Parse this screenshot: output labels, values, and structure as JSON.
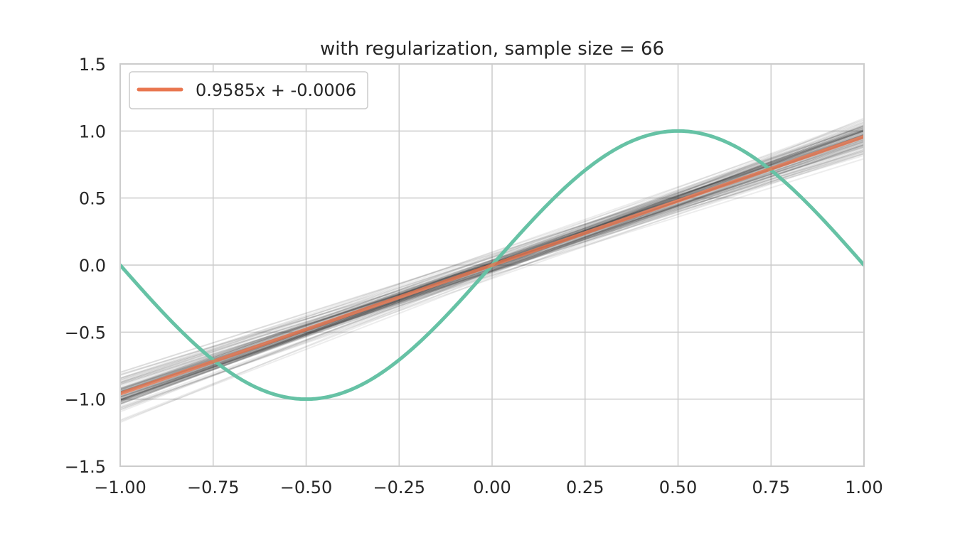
{
  "chart_data": {
    "type": "line",
    "title": "with regularization, sample size = 66",
    "xlabel": "",
    "ylabel": "",
    "xlim": [
      -1.0,
      1.0
    ],
    "ylim": [
      -1.5,
      1.5
    ],
    "x_ticks": [
      "−1.00",
      "−0.75",
      "−0.50",
      "−0.25",
      "0.00",
      "0.25",
      "0.50",
      "0.75",
      "1.00"
    ],
    "x_tick_values": [
      -1.0,
      -0.75,
      -0.5,
      -0.25,
      0.0,
      0.25,
      0.5,
      0.75,
      1.0
    ],
    "y_ticks": [
      "1.5",
      "1.0",
      "0.5",
      "0.0",
      "−0.5",
      "−1.0",
      "−1.5"
    ],
    "y_tick_values": [
      1.5,
      1.0,
      0.5,
      0.0,
      -0.5,
      -1.0,
      -1.5
    ],
    "grid": true,
    "legend": {
      "position": "top-left",
      "entries": [
        "0.9585x + -0.0006"
      ]
    },
    "series": [
      {
        "name": "0.9585x + -0.0006",
        "kind": "mean-fit",
        "slope": 0.9585,
        "intercept": -0.0006,
        "color": "#e9764f"
      },
      {
        "kind": "target-function",
        "function": "sin(pi*x)",
        "color": "#66c2a5"
      },
      {
        "kind": "bootstrap-fits",
        "count": 100,
        "color": "#000000",
        "opacity": 0.07,
        "slope_range": [
          0.55,
          1.25
        ],
        "intercept_range": [
          -0.17,
          0.17
        ]
      }
    ],
    "colors": {
      "grid": "#cccccc",
      "frame": "#cccccc",
      "text": "#262626"
    }
  }
}
